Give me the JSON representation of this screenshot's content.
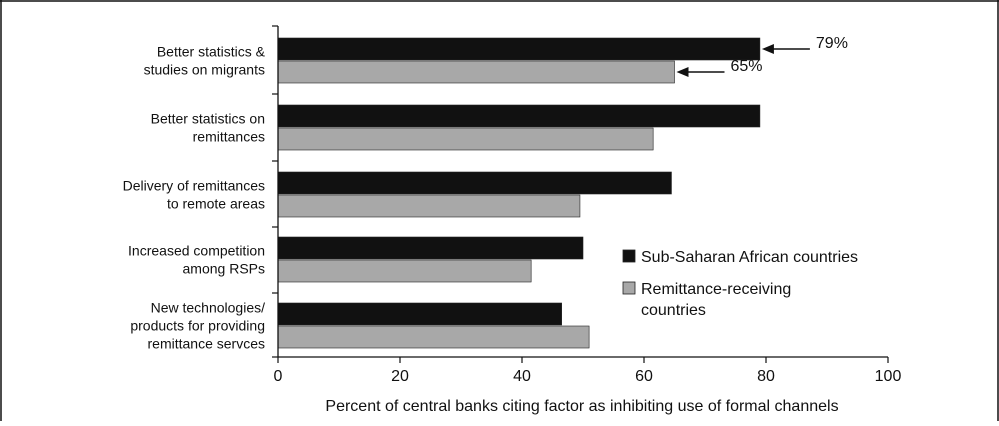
{
  "chart_data": {
    "type": "bar",
    "orientation": "horizontal",
    "categories": [
      [
        "Better statistics &",
        "studies on migrants"
      ],
      [
        "Better statistics on",
        "remittances"
      ],
      [
        "Delivery of remittances",
        "to remote areas"
      ],
      [
        "Increased competition",
        "among RSPs"
      ],
      [
        "New technologies/",
        "products for providing",
        "remittance servces"
      ]
    ],
    "series": [
      {
        "name": "Sub-Saharan African countries",
        "color": "#111111",
        "values": [
          79,
          79,
          64.5,
          50,
          46.5
        ]
      },
      {
        "name": "Remittance-receiving countries",
        "color": "#a8a8a8",
        "values": [
          65,
          61.5,
          49.5,
          41.5,
          51
        ]
      }
    ],
    "xlabel": "Percent of central banks citing factor as inhibiting use of formal channels",
    "ylabel": "",
    "xlim": [
      0,
      100
    ],
    "xticks": [
      "0",
      "20",
      "40",
      "60",
      "80",
      "100"
    ],
    "annotations": [
      {
        "series": 0,
        "category": 0,
        "text": "79%"
      },
      {
        "series": 1,
        "category": 0,
        "text": "65%"
      }
    ],
    "legend": {
      "placement": "right",
      "items": [
        [
          "Sub-Saharan African countries"
        ],
        [
          "Remittance-receiving",
          "countries"
        ]
      ]
    }
  }
}
